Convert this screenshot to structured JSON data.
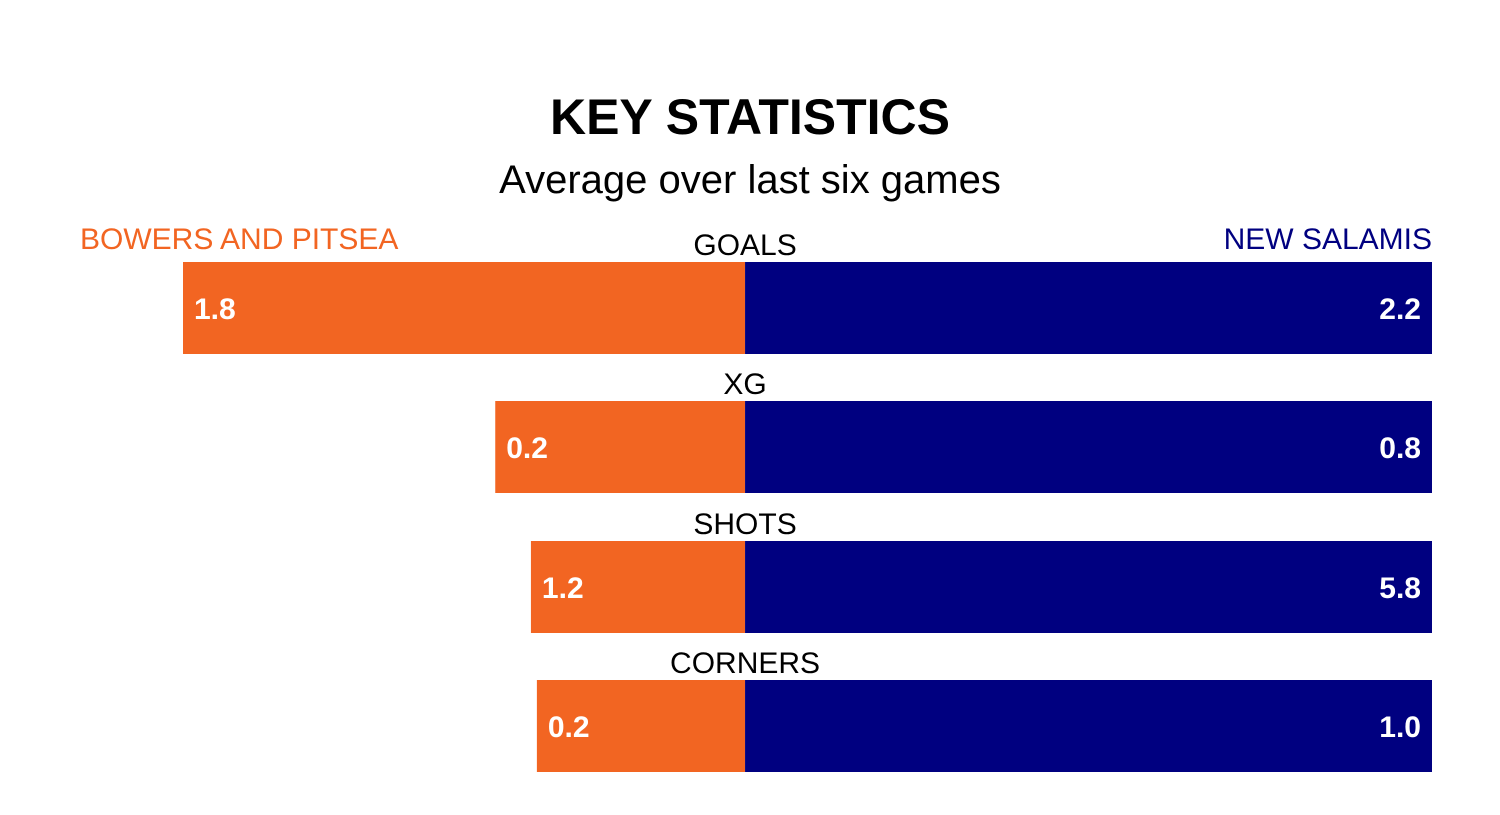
{
  "chart_data": {
    "type": "bar",
    "title": "KEY STATISTICS",
    "subtitle": "Average over last six games",
    "categories": [
      "GOALS",
      "XG",
      "SHOTS",
      "CORNERS"
    ],
    "series": [
      {
        "name": "BOWERS AND PITSEA",
        "color": "#f26522",
        "values": [
          1.8,
          0.2,
          1.2,
          0.2
        ]
      },
      {
        "name": "NEW SALAMIS",
        "color": "#000080",
        "values": [
          2.2,
          0.8,
          5.8,
          1.0
        ]
      }
    ],
    "value_labels": [
      [
        "1.8",
        "2.2"
      ],
      [
        "0.2",
        "0.8"
      ],
      [
        "1.2",
        "5.8"
      ],
      [
        "0.2",
        "1.0"
      ]
    ],
    "grid": false
  }
}
